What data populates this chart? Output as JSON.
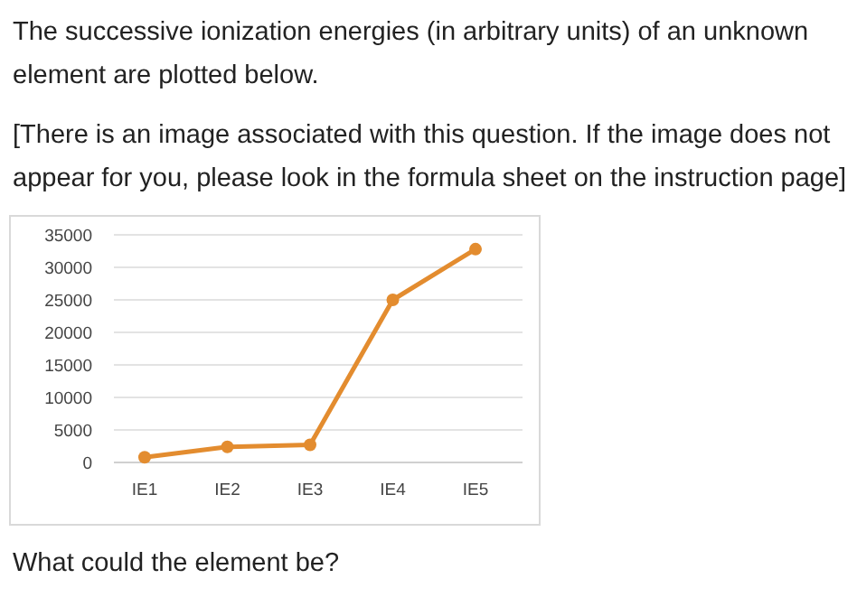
{
  "chart_data": {
    "type": "line",
    "title": "The successive ionization energies (in arbitrary units) of an unknown element are plotted below.",
    "subtitle": "[There is an image associated with this question. If the image does not appear for you, please look in the formula sheet on the instruction page]",
    "annotations": [
      "What could the element be?"
    ],
    "categories": [
      "IE1",
      "IE2",
      "IE3",
      "IE4",
      "IE5"
    ],
    "series": [
      {
        "color": "#e38c2f",
        "values": [
          800,
          2400,
          2700,
          25000,
          32800
        ]
      }
    ],
    "ylim": [
      0,
      35000
    ],
    "yticks": [
      0,
      5000,
      10000,
      15000,
      20000,
      25000,
      30000,
      35000
    ],
    "grid": "y",
    "marker": "circle",
    "line_style": "solid"
  }
}
